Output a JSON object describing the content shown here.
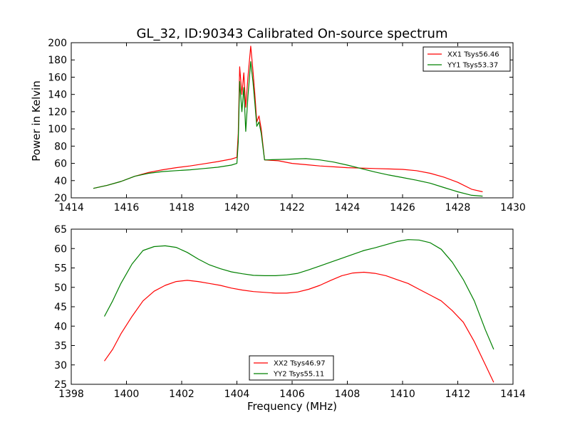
{
  "chart_data": [
    {
      "type": "line",
      "title": "GL_32, ID:90343 Calibrated On-source spectrum",
      "xlabel": "",
      "ylabel": "Power in Kelvin",
      "xlim": [
        1414,
        1430
      ],
      "ylim": [
        20,
        200
      ],
      "xticks": [
        "1414",
        "1416",
        "1418",
        "1420",
        "1422",
        "1424",
        "1426",
        "1428",
        "1430"
      ],
      "yticks": [
        "20",
        "40",
        "60",
        "80",
        "100",
        "120",
        "140",
        "160",
        "180",
        "200"
      ],
      "legend_position": "top-right",
      "grid": false,
      "series": [
        {
          "name": "XX1 Tsys56.46",
          "color": "#ff0000",
          "points": [
            [
              1414.8,
              31
            ],
            [
              1415.3,
              34.5
            ],
            [
              1415.8,
              39
            ],
            [
              1416.3,
              45
            ],
            [
              1416.8,
              49.5
            ],
            [
              1417.3,
              52.5
            ],
            [
              1417.8,
              55
            ],
            [
              1418.3,
              57
            ],
            [
              1418.8,
              59.5
            ],
            [
              1419.3,
              62
            ],
            [
              1419.8,
              65
            ],
            [
              1420.0,
              67
            ],
            [
              1420.05,
              95
            ],
            [
              1420.1,
              172
            ],
            [
              1420.18,
              140
            ],
            [
              1420.25,
              165
            ],
            [
              1420.32,
              125
            ],
            [
              1420.4,
              160
            ],
            [
              1420.5,
              196
            ],
            [
              1420.58,
              168
            ],
            [
              1420.65,
              140
            ],
            [
              1420.72,
              108
            ],
            [
              1420.8,
              115
            ],
            [
              1420.88,
              100
            ],
            [
              1421.0,
              64
            ],
            [
              1421.5,
              63
            ],
            [
              1422.0,
              60
            ],
            [
              1422.5,
              58.5
            ],
            [
              1423.0,
              57
            ],
            [
              1423.5,
              56
            ],
            [
              1424.0,
              55
            ],
            [
              1424.5,
              54.5
            ],
            [
              1425.0,
              54
            ],
            [
              1425.5,
              53.5
            ],
            [
              1426.0,
              53
            ],
            [
              1426.5,
              51.5
            ],
            [
              1427.0,
              48.5
            ],
            [
              1427.5,
              44
            ],
            [
              1428.0,
              38
            ],
            [
              1428.5,
              30
            ],
            [
              1428.9,
              27
            ]
          ]
        },
        {
          "name": "YY1 Tsys53.37",
          "color": "#008000",
          "points": [
            [
              1414.8,
              31
            ],
            [
              1415.3,
              34.5
            ],
            [
              1415.8,
              39
            ],
            [
              1416.3,
              45
            ],
            [
              1416.8,
              48.5
            ],
            [
              1417.3,
              50.5
            ],
            [
              1417.8,
              51.5
            ],
            [
              1418.3,
              52.5
            ],
            [
              1418.8,
              54
            ],
            [
              1419.3,
              55.5
            ],
            [
              1419.8,
              58
            ],
            [
              1420.0,
              60
            ],
            [
              1420.05,
              85
            ],
            [
              1420.1,
              155
            ],
            [
              1420.18,
              120
            ],
            [
              1420.25,
              148
            ],
            [
              1420.32,
              97
            ],
            [
              1420.4,
              138
            ],
            [
              1420.5,
              178
            ],
            [
              1420.58,
              155
            ],
            [
              1420.65,
              130
            ],
            [
              1420.72,
              103
            ],
            [
              1420.8,
              108
            ],
            [
              1420.88,
              95
            ],
            [
              1421.0,
              64
            ],
            [
              1421.5,
              64.5
            ],
            [
              1422.0,
              65
            ],
            [
              1422.5,
              65.5
            ],
            [
              1423.0,
              64
            ],
            [
              1423.5,
              61.5
            ],
            [
              1424.0,
              58
            ],
            [
              1424.5,
              54
            ],
            [
              1425.0,
              50
            ],
            [
              1425.5,
              46.5
            ],
            [
              1426.0,
              43.5
            ],
            [
              1426.5,
              40.5
            ],
            [
              1427.0,
              37
            ],
            [
              1427.5,
              32
            ],
            [
              1428.0,
              27
            ],
            [
              1428.5,
              23
            ],
            [
              1428.9,
              22
            ]
          ]
        }
      ]
    },
    {
      "type": "line",
      "title": "",
      "xlabel": "Frequency (MHz)",
      "ylabel": "",
      "xlim": [
        1398,
        1414
      ],
      "ylim": [
        25,
        65
      ],
      "xticks": [
        "1398",
        "1400",
        "1402",
        "1404",
        "1406",
        "1408",
        "1410",
        "1412",
        "1414"
      ],
      "yticks": [
        "25",
        "30",
        "35",
        "40",
        "45",
        "50",
        "55",
        "60",
        "65"
      ],
      "legend_position": "bottom-center",
      "grid": false,
      "series": [
        {
          "name": "XX2 Tsys46.97",
          "color": "#ff0000",
          "points": [
            [
              1399.2,
              31
            ],
            [
              1399.5,
              34
            ],
            [
              1399.8,
              38
            ],
            [
              1400.2,
              42.5
            ],
            [
              1400.6,
              46.5
            ],
            [
              1401.0,
              49
            ],
            [
              1401.4,
              50.5
            ],
            [
              1401.8,
              51.5
            ],
            [
              1402.2,
              51.8
            ],
            [
              1402.6,
              51.5
            ],
            [
              1403.0,
              51
            ],
            [
              1403.4,
              50.5
            ],
            [
              1403.8,
              49.8
            ],
            [
              1404.2,
              49.3
            ],
            [
              1404.6,
              48.9
            ],
            [
              1405.0,
              48.7
            ],
            [
              1405.4,
              48.5
            ],
            [
              1405.8,
              48.5
            ],
            [
              1406.2,
              48.8
            ],
            [
              1406.6,
              49.5
            ],
            [
              1407.0,
              50.5
            ],
            [
              1407.4,
              51.8
            ],
            [
              1407.8,
              53
            ],
            [
              1408.2,
              53.7
            ],
            [
              1408.6,
              53.9
            ],
            [
              1409.0,
              53.6
            ],
            [
              1409.4,
              53
            ],
            [
              1409.8,
              52
            ],
            [
              1410.2,
              51
            ],
            [
              1410.6,
              49.5
            ],
            [
              1411.0,
              48
            ],
            [
              1411.4,
              46.5
            ],
            [
              1411.8,
              44
            ],
            [
              1412.2,
              41
            ],
            [
              1412.6,
              36
            ],
            [
              1413.0,
              30
            ],
            [
              1413.3,
              25.5
            ]
          ]
        },
        {
          "name": "YY2 Tsys55.11",
          "color": "#008000",
          "points": [
            [
              1399.2,
              42.5
            ],
            [
              1399.5,
              46.5
            ],
            [
              1399.8,
              51
            ],
            [
              1400.2,
              56
            ],
            [
              1400.6,
              59.5
            ],
            [
              1401.0,
              60.5
            ],
            [
              1401.4,
              60.7
            ],
            [
              1401.8,
              60.3
            ],
            [
              1402.2,
              59
            ],
            [
              1402.6,
              57.3
            ],
            [
              1403.0,
              55.8
            ],
            [
              1403.4,
              54.8
            ],
            [
              1403.8,
              54
            ],
            [
              1404.2,
              53.5
            ],
            [
              1404.6,
              53.1
            ],
            [
              1405.0,
              53
            ],
            [
              1405.4,
              53
            ],
            [
              1405.8,
              53.2
            ],
            [
              1406.2,
              53.6
            ],
            [
              1406.6,
              54.5
            ],
            [
              1407.0,
              55.5
            ],
            [
              1407.4,
              56.5
            ],
            [
              1407.8,
              57.5
            ],
            [
              1408.2,
              58.5
            ],
            [
              1408.6,
              59.5
            ],
            [
              1409.0,
              60.2
            ],
            [
              1409.4,
              61
            ],
            [
              1409.8,
              61.8
            ],
            [
              1410.2,
              62.3
            ],
            [
              1410.6,
              62.2
            ],
            [
              1411.0,
              61.5
            ],
            [
              1411.4,
              59.8
            ],
            [
              1411.8,
              56.5
            ],
            [
              1412.2,
              52
            ],
            [
              1412.6,
              46.5
            ],
            [
              1413.0,
              39
            ],
            [
              1413.3,
              34
            ]
          ]
        }
      ]
    }
  ]
}
